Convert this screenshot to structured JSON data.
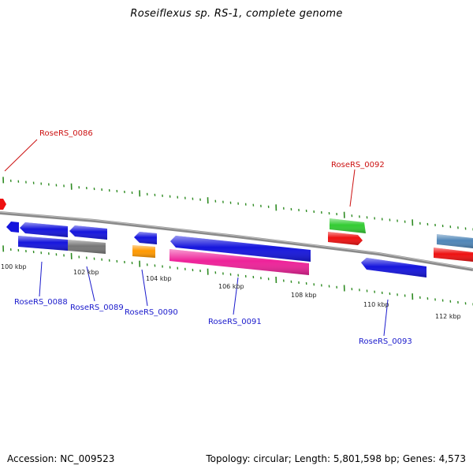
{
  "title": "Roseiflexus sp. RS-1, complete genome",
  "footer": {
    "accession": "Accession: NC_009523",
    "summary": "Topology: circular; Length: 5,801,598 bp; Genes: 4,573"
  },
  "colors": {
    "backbone": "#8a8a8a",
    "tick": "#2e8b22",
    "label_blue": "#1a1acc",
    "label_red": "#cc1111",
    "gene_blue": "#1515dd",
    "gene_gray": "#777777",
    "gene_orange": "#ff9900",
    "gene_pink": "#ee2299",
    "gene_green": "#33cc33",
    "gene_red": "#ee1111",
    "gene_steel": "#4f86b8"
  },
  "scale_labels": [
    "100 kbp",
    "102 kbp",
    "104 kbp",
    "106 kbp",
    "108 kbp",
    "110 kbp",
    "112 kbp"
  ],
  "gene_labels": [
    {
      "text": "RoseRS_0086",
      "color": "red"
    },
    {
      "text": "RoseRS_0088",
      "color": "blue"
    },
    {
      "text": "RoseRS_0089",
      "color": "blue"
    },
    {
      "text": "RoseRS_0090",
      "color": "blue"
    },
    {
      "text": "RoseRS_0091",
      "color": "blue"
    },
    {
      "text": "RoseRS_0092",
      "color": "red"
    },
    {
      "text": "RoseRS_0093",
      "color": "blue"
    }
  ]
}
